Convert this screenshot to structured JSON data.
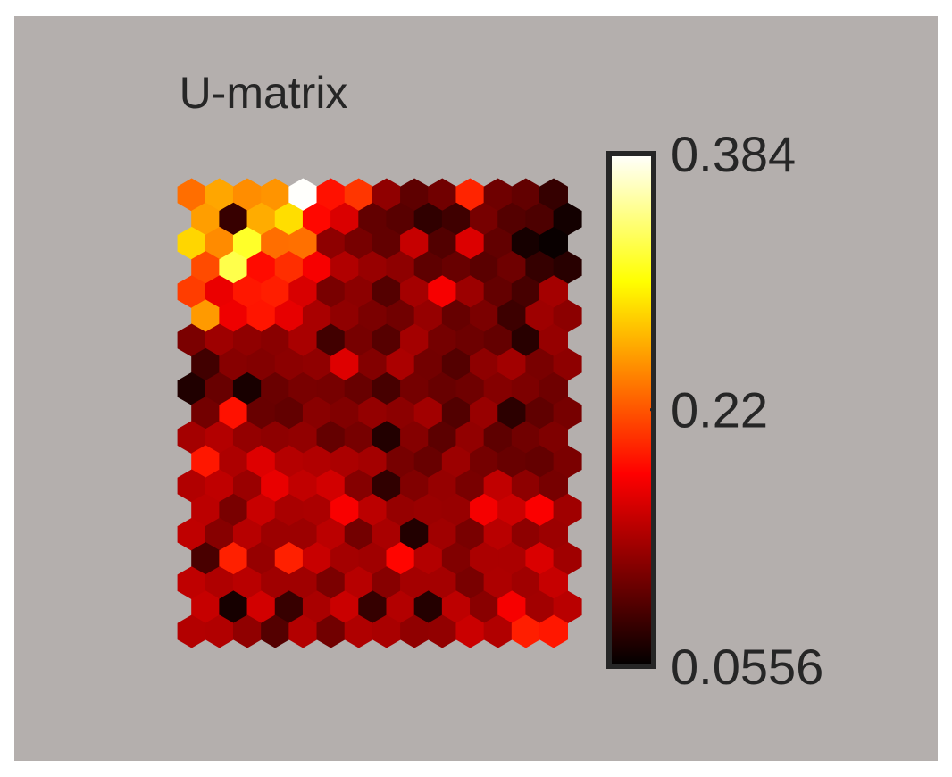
{
  "chart_data": {
    "type": "heatmap",
    "title": "U-matrix",
    "grid": "hexagonal",
    "colormap": "hot",
    "colorbar": {
      "min": 0.0556,
      "max": 0.384,
      "ticks": [
        {
          "value": 0.384,
          "label": "0.384"
        },
        {
          "value": 0.22,
          "label": "0.22"
        },
        {
          "value": 0.0556,
          "label": "0.0556"
        }
      ]
    },
    "rows": 19,
    "cols": 14,
    "values": [
      [
        0.232,
        0.259,
        0.247,
        0.25,
        0.383,
        0.187,
        0.205,
        0.125,
        0.101,
        0.11,
        0.196,
        0.109,
        0.103,
        0.081
      ],
      [
        0.255,
        0.082,
        0.262,
        0.286,
        0.182,
        0.161,
        0.103,
        0.098,
        0.079,
        0.086,
        0.113,
        0.096,
        0.093,
        0.065
      ],
      [
        0.282,
        0.246,
        0.315,
        0.232,
        0.233,
        0.124,
        0.113,
        0.103,
        0.151,
        0.095,
        0.162,
        0.103,
        0.066,
        0.06
      ],
      [
        0.215,
        0.326,
        0.184,
        0.201,
        0.175,
        0.141,
        0.129,
        0.124,
        0.101,
        0.106,
        0.099,
        0.109,
        0.081,
        0.075
      ],
      [
        0.208,
        0.169,
        0.19,
        0.193,
        0.16,
        0.114,
        0.123,
        0.096,
        0.135,
        0.175,
        0.131,
        0.104,
        0.09,
        0.135
      ],
      [
        0.253,
        0.171,
        0.189,
        0.167,
        0.137,
        0.125,
        0.115,
        0.11,
        0.128,
        0.105,
        0.115,
        0.085,
        0.132,
        0.123
      ],
      [
        0.115,
        0.132,
        0.125,
        0.122,
        0.137,
        0.087,
        0.113,
        0.097,
        0.135,
        0.112,
        0.108,
        0.104,
        0.075,
        0.128
      ],
      [
        0.087,
        0.121,
        0.119,
        0.123,
        0.125,
        0.163,
        0.119,
        0.138,
        0.111,
        0.096,
        0.124,
        0.134,
        0.114,
        0.124
      ],
      [
        0.071,
        0.106,
        0.067,
        0.107,
        0.114,
        0.113,
        0.106,
        0.09,
        0.112,
        0.106,
        0.109,
        0.12,
        0.116,
        0.109
      ],
      [
        0.111,
        0.187,
        0.106,
        0.103,
        0.122,
        0.118,
        0.127,
        0.123,
        0.134,
        0.095,
        0.129,
        0.077,
        0.102,
        0.113
      ],
      [
        0.135,
        0.142,
        0.127,
        0.124,
        0.126,
        0.104,
        0.113,
        0.072,
        0.12,
        0.1,
        0.126,
        0.101,
        0.11,
        0.117
      ],
      [
        0.19,
        0.139,
        0.163,
        0.143,
        0.141,
        0.138,
        0.135,
        0.113,
        0.106,
        0.131,
        0.112,
        0.106,
        0.104,
        0.115
      ],
      [
        0.141,
        0.148,
        0.13,
        0.168,
        0.149,
        0.157,
        0.12,
        0.079,
        0.118,
        0.128,
        0.114,
        0.149,
        0.124,
        0.113
      ],
      [
        0.146,
        0.114,
        0.152,
        0.137,
        0.138,
        0.176,
        0.146,
        0.128,
        0.13,
        0.129,
        0.174,
        0.154,
        0.177,
        0.133
      ],
      [
        0.148,
        0.121,
        0.144,
        0.131,
        0.131,
        0.146,
        0.111,
        0.137,
        0.072,
        0.133,
        0.114,
        0.145,
        0.124,
        0.131
      ],
      [
        0.091,
        0.194,
        0.128,
        0.194,
        0.152,
        0.135,
        0.133,
        0.181,
        0.142,
        0.118,
        0.138,
        0.138,
        0.161,
        0.133
      ],
      [
        0.148,
        0.14,
        0.145,
        0.133,
        0.133,
        0.115,
        0.144,
        0.121,
        0.135,
        0.135,
        0.114,
        0.139,
        0.133,
        0.151
      ],
      [
        0.151,
        0.066,
        0.157,
        0.082,
        0.137,
        0.153,
        0.081,
        0.142,
        0.073,
        0.147,
        0.122,
        0.175,
        0.134,
        0.145
      ],
      [
        0.142,
        0.141,
        0.125,
        0.096,
        0.142,
        0.11,
        0.14,
        0.137,
        0.125,
        0.126,
        0.153,
        0.141,
        0.193,
        0.19
      ]
    ]
  }
}
